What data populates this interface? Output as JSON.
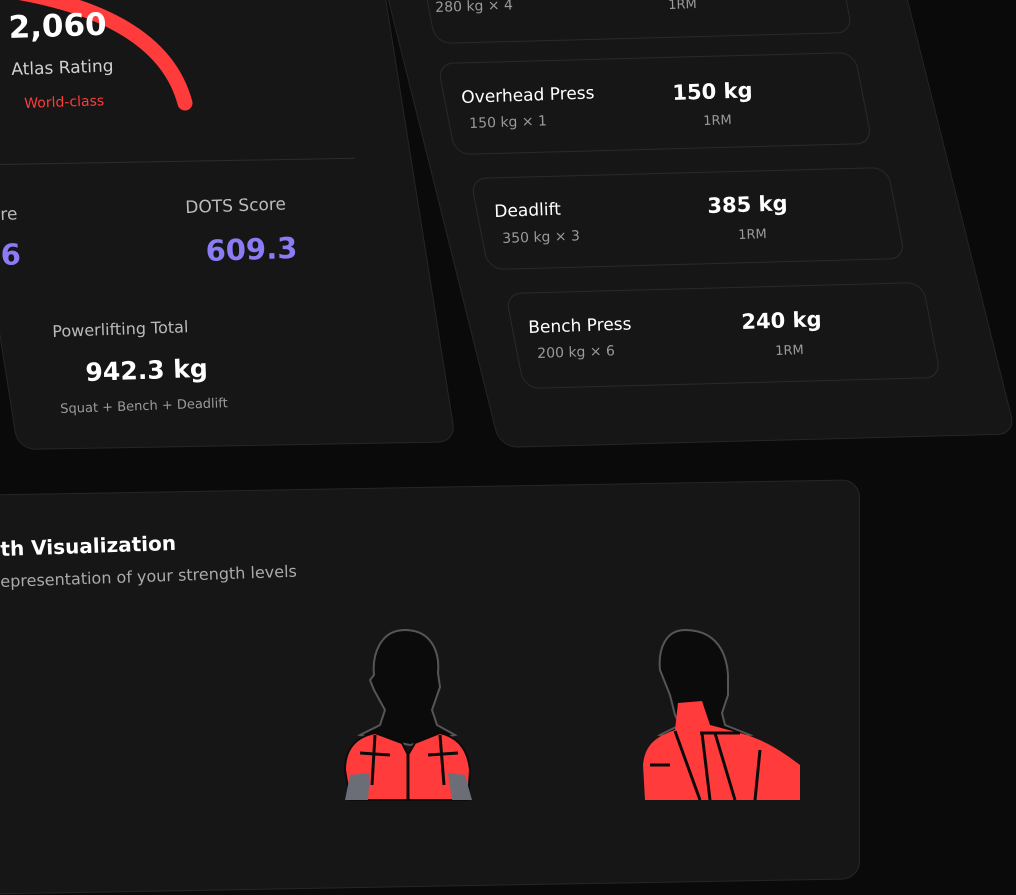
{
  "rating": {
    "value": "2,060",
    "label": "Atlas Rating",
    "tier": "World-class",
    "progress_color": "#ff3b3b"
  },
  "scores": {
    "left_label_partial": "re",
    "left_value_partial": "6",
    "dots_label": "DOTS Score",
    "dots_value": "609.3",
    "accent": "#8b7cf6"
  },
  "total": {
    "label": "Powerlifting Total",
    "value": "942.3 kg",
    "formula": "Squat + Bench + Deadlift"
  },
  "lifts": [
    {
      "name": "",
      "detail": "280 kg × 4",
      "value": "",
      "unit": "1RM"
    },
    {
      "name": "Overhead Press",
      "detail": "150 kg × 1",
      "value": "150 kg",
      "unit": "1RM"
    },
    {
      "name": "Deadlift",
      "detail": "350 kg × 3",
      "value": "385 kg",
      "unit": "1RM"
    },
    {
      "name": "Bench Press",
      "detail": "200 kg × 6",
      "value": "240 kg",
      "unit": "1RM"
    }
  ],
  "visualization": {
    "title": "th Visualization",
    "subtitle": "epresentation of your strength levels",
    "muscle_color": "#ff3b3b"
  }
}
